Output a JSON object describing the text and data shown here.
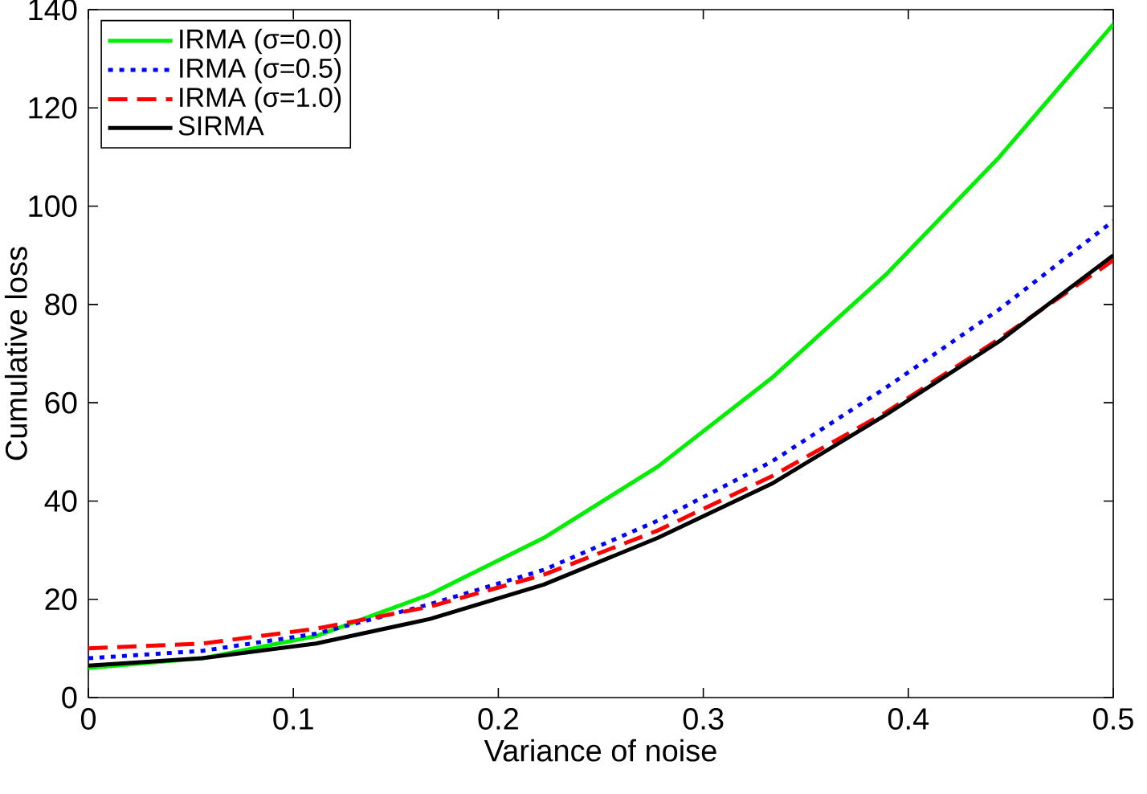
{
  "chart_data": {
    "type": "line",
    "xlabel": "Variance of noise",
    "ylabel": "Cumulative loss",
    "x": [
      0,
      0.0556,
      0.1111,
      0.1667,
      0.2222,
      0.2778,
      0.3333,
      0.3889,
      0.4444,
      0.5
    ],
    "series": [
      {
        "name": "IRMA (σ=0.0)",
        "color": "#00ee00",
        "line_style": "solid",
        "values": [
          6,
          8,
          12.5,
          21,
          32.5,
          47,
          65,
          86,
          110,
          137
        ]
      },
      {
        "name": "IRMA (σ=0.5)",
        "color": "#0000ff",
        "line_style": "dotted",
        "values": [
          8,
          9.5,
          13,
          19,
          26,
          36,
          48,
          63,
          79,
          97
        ]
      },
      {
        "name": "IRMA (σ=1.0)",
        "color": "#ff0000",
        "line_style": "dashed",
        "values": [
          10,
          11,
          14,
          18.5,
          25,
          34,
          45,
          58,
          73,
          89
        ]
      },
      {
        "name": "SIRMA",
        "color": "#000000",
        "line_style": "solid",
        "values": [
          6.5,
          8,
          11,
          16,
          23,
          32.5,
          43.5,
          57.5,
          72.5,
          90
        ]
      }
    ],
    "xlim": [
      0,
      0.5
    ],
    "ylim": [
      0,
      140
    ],
    "xticks": [
      0,
      0.1,
      0.2,
      0.3,
      0.4,
      0.5
    ],
    "yticks": [
      0,
      20,
      40,
      60,
      80,
      100,
      120,
      140
    ],
    "grid": false,
    "legend": "top left",
    "marker": "none"
  }
}
